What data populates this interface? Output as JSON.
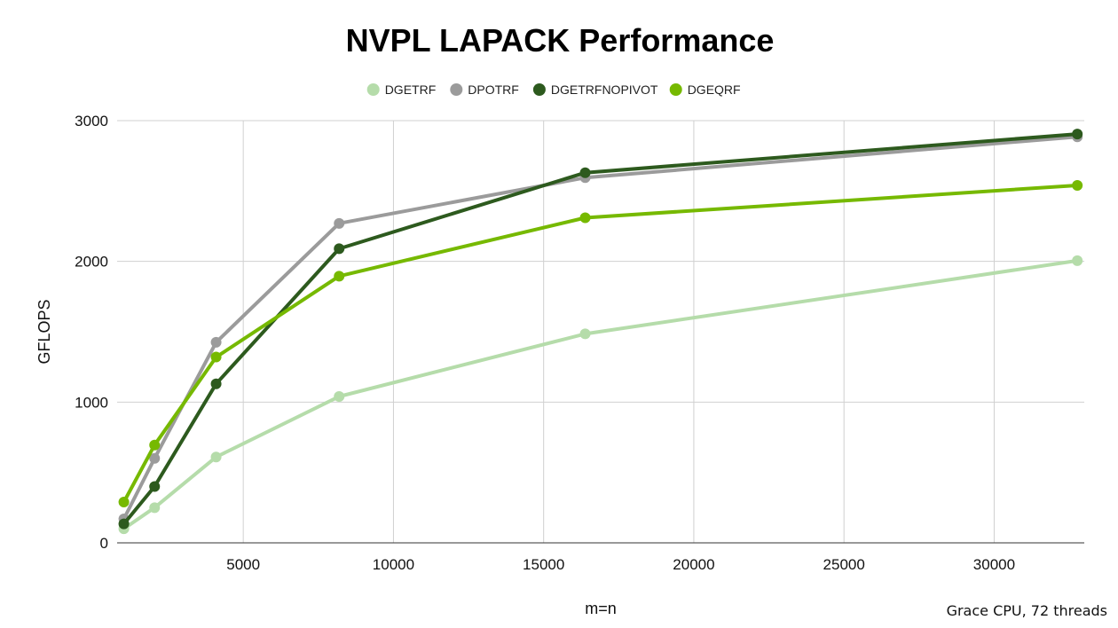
{
  "chart_data": {
    "type": "line",
    "title": "NVPL LAPACK Performance",
    "xlabel": "m=n",
    "ylabel": "GFLOPS",
    "xlim": [
      800,
      33000
    ],
    "ylim": [
      0,
      3000
    ],
    "xticks": [
      5000,
      10000,
      15000,
      20000,
      25000,
      30000
    ],
    "yticks": [
      0,
      1000,
      2000,
      3000
    ],
    "grid": true,
    "legend_position": "top",
    "x": [
      1024,
      2048,
      4096,
      8192,
      16384,
      32768
    ],
    "series": [
      {
        "name": "DGETRF",
        "color": "#b5dcaa",
        "values": [
          100,
          250,
          610,
          1040,
          1485,
          2005
        ]
      },
      {
        "name": "DPOTRF",
        "color": "#9b9b9b",
        "values": [
          170,
          600,
          1425,
          2270,
          2595,
          2885
        ]
      },
      {
        "name": "DGETRFNOPIVOT",
        "color": "#2d5a1e",
        "values": [
          135,
          400,
          1130,
          2090,
          2630,
          2905
        ]
      },
      {
        "name": "DGEQRF",
        "color": "#76b900",
        "values": [
          290,
          695,
          1320,
          1895,
          2310,
          2540
        ]
      }
    ],
    "footnote": "Grace CPU, 72 threads"
  }
}
